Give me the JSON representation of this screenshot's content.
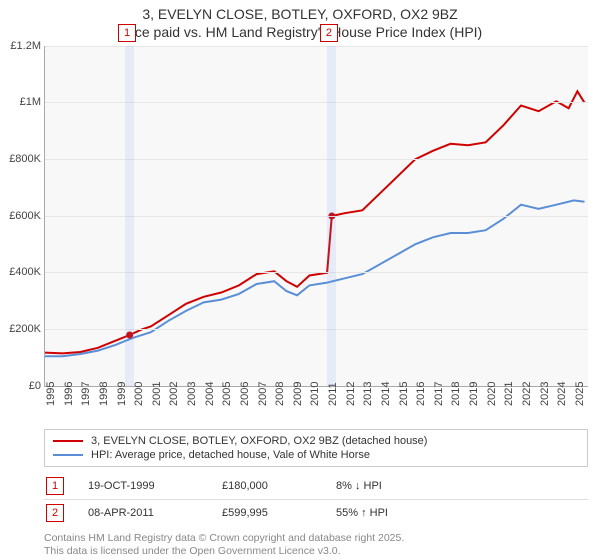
{
  "title_line1": "3, EVELYN CLOSE, BOTLEY, OXFORD, OX2 9BZ",
  "title_line2": "Price paid vs. HM Land Registry's House Price Index (HPI)",
  "chart": {
    "type": "line",
    "background_color": "#f8f8f8",
    "grid_color": "#e6e6e6",
    "axis_color": "#aaaaaa",
    "tick_font_size": 11,
    "x_range": [
      1995,
      2025.8
    ],
    "x_ticks": [
      1995,
      1996,
      1997,
      1998,
      1999,
      2000,
      2001,
      2002,
      2003,
      2004,
      2005,
      2006,
      2007,
      2008,
      2009,
      2010,
      2011,
      2012,
      2013,
      2014,
      2015,
      2016,
      2017,
      2018,
      2019,
      2020,
      2021,
      2022,
      2023,
      2024,
      2025
    ],
    "y_range": [
      0,
      1200000
    ],
    "y_ticks": [
      {
        "v": 0,
        "label": "£0"
      },
      {
        "v": 200000,
        "label": "£200K"
      },
      {
        "v": 400000,
        "label": "£400K"
      },
      {
        "v": 600000,
        "label": "£600K"
      },
      {
        "v": 800000,
        "label": "£800K"
      },
      {
        "v": 1000000,
        "label": "£1M"
      },
      {
        "v": 1200000,
        "label": "£1.2M"
      }
    ],
    "bands": [
      {
        "from": 1999.55,
        "to": 2000.05,
        "color": "rgba(100,160,255,0.12)"
      },
      {
        "from": 2011.02,
        "to": 2011.52,
        "color": "rgba(100,160,255,0.12)"
      }
    ],
    "markers": [
      {
        "n": "1",
        "x": 1999.6,
        "label": "1"
      },
      {
        "n": "2",
        "x": 2011.05,
        "label": "2"
      }
    ],
    "series": [
      {
        "id": "property",
        "color": "#d00000",
        "width": 2,
        "points": [
          [
            1995.0,
            118000
          ],
          [
            1996.0,
            115000
          ],
          [
            1997.0,
            120000
          ],
          [
            1998.0,
            135000
          ],
          [
            1999.0,
            160000
          ],
          [
            1999.8,
            180000
          ],
          [
            2000.5,
            200000
          ],
          [
            2001.0,
            210000
          ],
          [
            2002.0,
            250000
          ],
          [
            2003.0,
            290000
          ],
          [
            2004.0,
            315000
          ],
          [
            2005.0,
            330000
          ],
          [
            2006.0,
            355000
          ],
          [
            2007.0,
            395000
          ],
          [
            2008.0,
            405000
          ],
          [
            2008.7,
            370000
          ],
          [
            2009.3,
            350000
          ],
          [
            2010.0,
            390000
          ],
          [
            2011.0,
            400000
          ],
          [
            2011.27,
            599995
          ],
          [
            2012.0,
            610000
          ],
          [
            2013.0,
            620000
          ],
          [
            2014.0,
            680000
          ],
          [
            2015.0,
            740000
          ],
          [
            2016.0,
            800000
          ],
          [
            2017.0,
            830000
          ],
          [
            2018.0,
            855000
          ],
          [
            2019.0,
            850000
          ],
          [
            2020.0,
            860000
          ],
          [
            2021.0,
            920000
          ],
          [
            2022.0,
            990000
          ],
          [
            2023.0,
            970000
          ],
          [
            2024.0,
            1005000
          ],
          [
            2024.7,
            980000
          ],
          [
            2025.2,
            1040000
          ],
          [
            2025.6,
            1000000
          ]
        ]
      },
      {
        "id": "hpi",
        "color": "#5a8fd6",
        "width": 2,
        "points": [
          [
            1995.0,
            105000
          ],
          [
            1996.0,
            105000
          ],
          [
            1997.0,
            113000
          ],
          [
            1998.0,
            125000
          ],
          [
            1999.0,
            145000
          ],
          [
            2000.0,
            170000
          ],
          [
            2001.0,
            190000
          ],
          [
            2002.0,
            230000
          ],
          [
            2003.0,
            265000
          ],
          [
            2004.0,
            295000
          ],
          [
            2005.0,
            305000
          ],
          [
            2006.0,
            325000
          ],
          [
            2007.0,
            360000
          ],
          [
            2008.0,
            370000
          ],
          [
            2008.7,
            335000
          ],
          [
            2009.3,
            320000
          ],
          [
            2010.0,
            355000
          ],
          [
            2011.0,
            365000
          ],
          [
            2012.0,
            380000
          ],
          [
            2013.0,
            395000
          ],
          [
            2014.0,
            430000
          ],
          [
            2015.0,
            465000
          ],
          [
            2016.0,
            500000
          ],
          [
            2017.0,
            525000
          ],
          [
            2018.0,
            540000
          ],
          [
            2019.0,
            540000
          ],
          [
            2020.0,
            550000
          ],
          [
            2021.0,
            590000
          ],
          [
            2022.0,
            640000
          ],
          [
            2023.0,
            625000
          ],
          [
            2024.0,
            640000
          ],
          [
            2025.0,
            655000
          ],
          [
            2025.6,
            650000
          ]
        ]
      }
    ],
    "sale_points": [
      {
        "x": 1999.8,
        "y": 180000,
        "color": "#d00000"
      },
      {
        "x": 2011.27,
        "y": 599995,
        "color": "#d00000"
      }
    ]
  },
  "legend": [
    {
      "color": "#d00000",
      "label": "3, EVELYN CLOSE, BOTLEY, OXFORD, OX2 9BZ (detached house)"
    },
    {
      "color": "#5a8fd6",
      "label": "HPI: Average price, detached house, Vale of White Horse"
    }
  ],
  "points": [
    {
      "n": "1",
      "date": "19-OCT-1999",
      "price": "£180,000",
      "delta": "8% ↓ HPI"
    },
    {
      "n": "2",
      "date": "08-APR-2011",
      "price": "£599,995",
      "delta": "55% ↑ HPI"
    }
  ],
  "footnote1": "Contains HM Land Registry data © Crown copyright and database right 2025.",
  "footnote2": "This data is licensed under the Open Government Licence v3.0."
}
